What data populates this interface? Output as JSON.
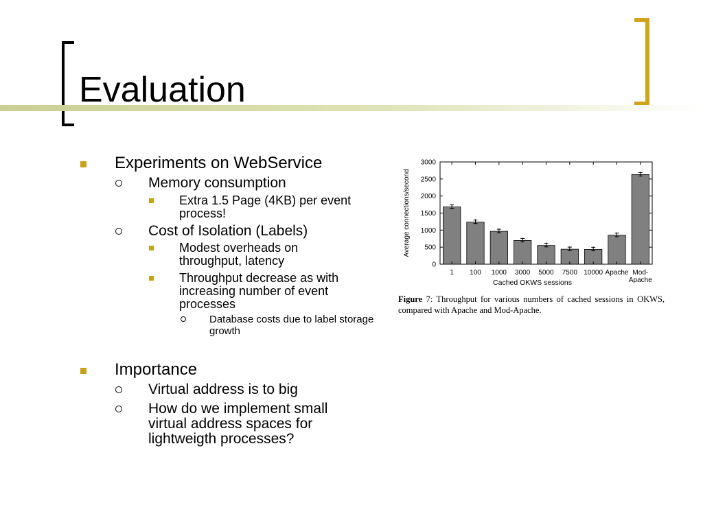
{
  "slide": {
    "title": "Evaluation",
    "colors": {
      "accent": "#c9a01a",
      "bracket_right": "#d3a21b",
      "title_bar": "#c9cf8f",
      "bar_fill": "#808080"
    },
    "bullets": [
      {
        "text": "Experiments on WebService"
      },
      {
        "text": "Memory consumption"
      },
      {
        "text": "Extra 1.5 Page (4KB) per event process!"
      },
      {
        "text": "Cost of Isolation (Labels)"
      },
      {
        "text": "Modest overheads on throughput, latency"
      },
      {
        "text": "Throughput decrease as with increasing number of event processes"
      },
      {
        "text": "Database costs due to label storage growth"
      },
      {
        "text": "Importance"
      },
      {
        "text": "Virtual address is to big"
      },
      {
        "text": "How do we implement small virtual address spaces for lightweigth processes?"
      }
    ],
    "figure": {
      "caption_label": "Figure",
      "caption_number": "7",
      "caption_text": ": Throughput for various numbers of cached sessions in OKWS, compared with Apache and Mod-Apache."
    }
  },
  "chart_data": {
    "type": "bar",
    "categories": [
      "1",
      "100",
      "1000",
      "3000",
      "5000",
      "7500",
      "10000",
      "Apache",
      "Mod-Apache"
    ],
    "category_lines": [
      [
        "1"
      ],
      [
        "100"
      ],
      [
        "1000"
      ],
      [
        "3000"
      ],
      [
        "5000"
      ],
      [
        "7500"
      ],
      [
        "10000"
      ],
      [
        "Apache"
      ],
      [
        "Mod-",
        "Apache"
      ]
    ],
    "values": [
      1680,
      1235,
      965,
      695,
      550,
      440,
      435,
      850,
      2630
    ],
    "xlabel": "Cached OKWS sessions",
    "ylabel": "Average connections/second",
    "ylim": [
      0,
      3000
    ],
    "yticks": [
      0,
      500,
      1000,
      1500,
      2000,
      2500,
      3000
    ],
    "error_bars": true,
    "grid": false,
    "legend": "none"
  }
}
